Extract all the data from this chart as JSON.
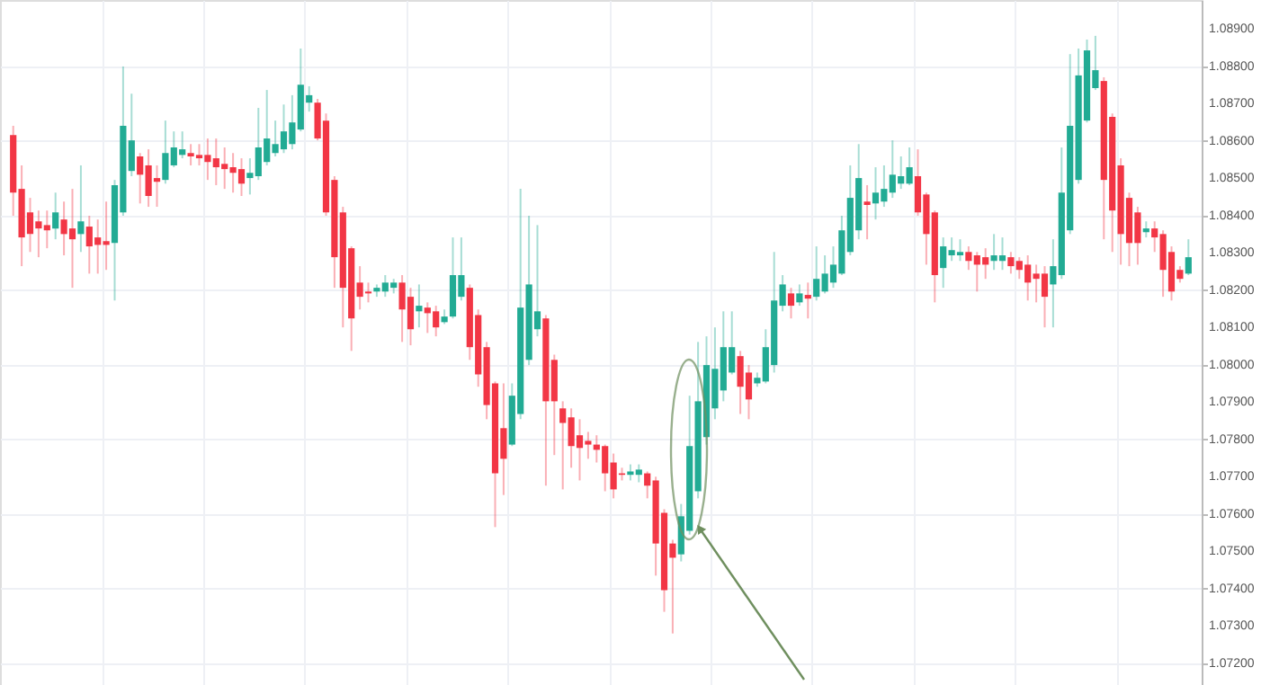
{
  "chart_data": {
    "type": "candlestick",
    "categories": [
      null,
      null,
      null,
      null,
      null,
      null,
      null,
      null,
      null,
      null,
      null,
      null,
      null,
      null,
      null,
      null,
      null,
      null,
      null,
      null,
      null,
      null,
      null,
      null,
      null,
      null,
      null,
      null,
      null,
      null,
      null,
      null,
      null,
      null,
      null,
      null,
      null,
      null,
      null,
      null,
      null,
      null,
      null,
      null,
      null,
      null,
      null,
      null,
      null,
      null,
      null,
      null,
      null,
      null,
      null,
      null,
      null,
      null,
      null,
      null,
      null,
      null,
      null,
      null,
      null,
      null,
      null,
      null,
      null,
      null,
      null,
      null,
      null,
      null,
      null,
      null,
      null,
      null,
      null,
      null,
      null,
      null,
      null,
      null,
      null,
      null,
      null,
      null,
      null,
      null,
      null,
      null,
      null,
      null,
      null,
      null,
      null,
      null,
      null,
      null,
      null,
      null,
      null,
      null,
      null,
      null,
      null,
      null,
      null,
      null,
      null,
      null,
      null,
      null,
      null,
      null,
      null,
      null,
      null,
      null,
      null,
      null,
      null,
      null,
      null,
      null,
      null,
      null,
      null,
      null,
      null,
      null,
      null,
      null,
      null,
      null,
      null,
      null,
      null,
      null
    ],
    "ohlc": [
      [
        1.08615,
        1.0864,
        1.08399,
        1.08461
      ],
      [
        1.08471,
        1.08534,
        1.08264,
        1.08341
      ],
      [
        1.08408,
        1.08447,
        1.08302,
        1.0835
      ],
      [
        1.08384,
        1.08413,
        1.08288,
        1.08365
      ],
      [
        1.08374,
        1.08413,
        1.08312,
        1.0836
      ],
      [
        1.08365,
        1.08461,
        1.08336,
        1.08408
      ],
      [
        1.08389,
        1.08437,
        1.08293,
        1.0835
      ],
      [
        1.08365,
        1.08471,
        1.08206,
        1.08336
      ],
      [
        1.0835,
        1.08534,
        1.08302,
        1.08384
      ],
      [
        1.0837,
        1.08399,
        1.08244,
        1.08317
      ],
      [
        1.08341,
        1.08389,
        1.08244,
        1.08321
      ],
      [
        1.08331,
        1.08437,
        1.08254,
        1.08321
      ],
      [
        1.08326,
        1.08495,
        1.08172,
        1.08481
      ],
      [
        1.08408,
        1.08799,
        1.08399,
        1.0864
      ],
      [
        1.08519,
        1.08726,
        1.08505,
        1.08601
      ],
      [
        1.08558,
        1.08567,
        1.08432,
        1.08509
      ],
      [
        1.08534,
        1.08577,
        1.08423,
        1.08452
      ],
      [
        1.085,
        1.08534,
        1.08423,
        1.0849
      ],
      [
        1.08495,
        1.08654,
        1.08485,
        1.08567
      ],
      [
        1.08534,
        1.08625,
        1.08529,
        1.08582
      ],
      [
        1.08562,
        1.08625,
        1.08553,
        1.08577
      ],
      [
        1.08567,
        1.08591,
        1.08534,
        1.08558
      ],
      [
        1.08562,
        1.08591,
        1.08534,
        1.08553
      ],
      [
        1.08562,
        1.08606,
        1.08495,
        1.08543
      ],
      [
        1.08553,
        1.08606,
        1.08481,
        1.08529
      ],
      [
        1.08538,
        1.08582,
        1.08471,
        1.08524
      ],
      [
        1.08529,
        1.08567,
        1.08461,
        1.08514
      ],
      [
        1.08524,
        1.08553,
        1.08452,
        1.08485
      ],
      [
        1.085,
        1.08553,
        1.08456,
        1.08514
      ],
      [
        1.08505,
        1.08688,
        1.08495,
        1.08582
      ],
      [
        1.08543,
        1.08736,
        1.08534,
        1.08606
      ],
      [
        1.08567,
        1.08654,
        1.08558,
        1.08591
      ],
      [
        1.08577,
        1.08697,
        1.08567,
        1.08625
      ],
      [
        1.08591,
        1.08722,
        1.08577,
        1.08649
      ],
      [
        1.0863,
        1.08847,
        1.08625,
        1.0875
      ],
      [
        1.08702,
        1.08746,
        1.08678,
        1.08722
      ],
      [
        1.08702,
        1.08712,
        1.08601,
        1.08606
      ],
      [
        1.08654,
        1.08673,
        1.08399,
        1.08408
      ],
      [
        1.08495,
        1.08505,
        1.08206,
        1.08288
      ],
      [
        1.08408,
        1.08423,
        1.081,
        1.08206
      ],
      [
        1.08312,
        1.08317,
        1.08037,
        1.08124
      ],
      [
        1.0822,
        1.08264,
        1.08148,
        1.08182
      ],
      [
        1.08196,
        1.0822,
        1.08167,
        1.08191
      ],
      [
        1.08196,
        1.08215,
        1.08182,
        1.08206
      ],
      [
        1.08196,
        1.0824,
        1.08182,
        1.0822
      ],
      [
        1.08206,
        1.0823,
        1.08191,
        1.0822
      ],
      [
        1.0822,
        1.0824,
        1.08061,
        1.08148
      ],
      [
        1.08182,
        1.08206,
        1.08052,
        1.08095
      ],
      [
        1.08143,
        1.08215,
        1.081,
        1.08158
      ],
      [
        1.08153,
        1.08167,
        1.08085,
        1.08138
      ],
      [
        1.08143,
        1.08158,
        1.08076,
        1.081
      ],
      [
        1.08114,
        1.08148,
        1.08109,
        1.08129
      ],
      [
        1.08129,
        1.08341,
        1.08124,
        1.0824
      ],
      [
        1.08182,
        1.08341,
        1.08172,
        1.0824
      ],
      [
        1.08206,
        1.08215,
        1.08013,
        1.08047
      ],
      [
        1.08133,
        1.08148,
        1.07941,
        1.07974
      ],
      [
        1.08047,
        1.08061,
        1.07854,
        1.07892
      ],
      [
        1.0795,
        1.07955,
        1.07565,
        1.07709
      ],
      [
        1.0783,
        1.0795,
        1.07651,
        1.07748
      ],
      [
        1.07786,
        1.0795,
        1.07782,
        1.07917
      ],
      [
        1.07868,
        1.08471,
        1.07854,
        1.08153
      ],
      [
        1.08013,
        1.08399,
        1.07999,
        1.08215
      ],
      [
        1.08095,
        1.08374,
        1.08076,
        1.08143
      ],
      [
        1.08124,
        1.08133,
        1.07676,
        1.07902
      ],
      [
        1.08013,
        1.08027,
        1.07758,
        1.07902
      ],
      [
        1.07883,
        1.07902,
        1.07666,
        1.07844
      ],
      [
        1.07859,
        1.07883,
        1.07724,
        1.07782
      ],
      [
        1.07811,
        1.07854,
        1.0769,
        1.07777
      ],
      [
        1.07796,
        1.0782,
        1.07748,
        1.07786
      ],
      [
        1.07786,
        1.07811,
        1.07738,
        1.07772
      ],
      [
        1.07782,
        1.07786,
        1.07661,
        1.07709
      ],
      [
        1.07738,
        1.07762,
        1.07642,
        1.07666
      ],
      [
        1.07709,
        1.07724,
        1.0769,
        1.07705
      ],
      [
        1.07705,
        1.07733,
        1.0769,
        1.07714
      ],
      [
        1.07705,
        1.07733,
        1.07685,
        1.07719
      ],
      [
        1.07709,
        1.07714,
        1.07642,
        1.07676
      ],
      [
        1.0769,
        1.077,
        1.07435,
        1.07521
      ],
      [
        1.07603,
        1.07613,
        1.07338,
        1.07396
      ],
      [
        1.07521,
        1.07531,
        1.0728,
        1.07483
      ],
      [
        1.07492,
        1.07627,
        1.07473,
        1.07594
      ],
      [
        1.07555,
        1.07917,
        1.07545,
        1.07782
      ],
      [
        1.07661,
        1.08061,
        1.07642,
        1.07902
      ],
      [
        1.07806,
        1.08076,
        1.07786,
        1.07999
      ],
      [
        1.07883,
        1.081,
        1.07854,
        1.07989
      ],
      [
        1.07931,
        1.08143,
        1.07902,
        1.08047
      ],
      [
        1.07979,
        1.08143,
        1.07974,
        1.08047
      ],
      [
        1.08023,
        1.08037,
        1.07868,
        1.07941
      ],
      [
        1.07979,
        1.07999,
        1.07854,
        1.07907
      ],
      [
        1.0795,
        1.07979,
        1.07941,
        1.07965
      ],
      [
        1.07955,
        1.08095,
        1.0795,
        1.08047
      ],
      [
        1.07999,
        1.08302,
        1.07979,
        1.08172
      ],
      [
        1.08158,
        1.0824,
        1.08143,
        1.08215
      ],
      [
        1.08191,
        1.08206,
        1.08124,
        1.08158
      ],
      [
        1.08167,
        1.08215,
        1.08158,
        1.08191
      ],
      [
        1.08187,
        1.0822,
        1.08124,
        1.08177
      ],
      [
        1.08182,
        1.08317,
        1.08172,
        1.0823
      ],
      [
        1.08196,
        1.08293,
        1.08191,
        1.08244
      ],
      [
        1.0822,
        1.08317,
        1.08206,
        1.08268
      ],
      [
        1.08244,
        1.08399,
        1.0824,
        1.0836
      ],
      [
        1.08302,
        1.08534,
        1.08293,
        1.08447
      ],
      [
        1.0836,
        1.08591,
        1.08336,
        1.085
      ],
      [
        1.08437,
        1.08481,
        1.08336,
        1.08428
      ],
      [
        1.08432,
        1.08529,
        1.08389,
        1.08461
      ],
      [
        1.08437,
        1.08534,
        1.08423,
        1.08471
      ],
      [
        1.08461,
        1.08601,
        1.08447,
        1.08509
      ],
      [
        1.08485,
        1.08558,
        1.08471,
        1.08505
      ],
      [
        1.08485,
        1.08582,
        1.08481,
        1.08529
      ],
      [
        1.08505,
        1.08577,
        1.08399,
        1.08408
      ],
      [
        1.08456,
        1.08461,
        1.08268,
        1.0835
      ],
      [
        1.08408,
        1.08413,
        1.08167,
        1.0824
      ],
      [
        1.08259,
        1.08341,
        1.08206,
        1.08317
      ],
      [
        1.08293,
        1.08341,
        1.08278,
        1.08307
      ],
      [
        1.08293,
        1.08336,
        1.08278,
        1.08302
      ],
      [
        1.08302,
        1.08317,
        1.08254,
        1.08278
      ],
      [
        1.08293,
        1.08302,
        1.08196,
        1.08268
      ],
      [
        1.08288,
        1.08312,
        1.0823,
        1.08268
      ],
      [
        1.08278,
        1.0835,
        1.08254,
        1.08293
      ],
      [
        1.08278,
        1.08341,
        1.08254,
        1.08293
      ],
      [
        1.08288,
        1.08302,
        1.08244,
        1.08264
      ],
      [
        1.08278,
        1.08288,
        1.0823,
        1.08254
      ],
      [
        1.08268,
        1.08293,
        1.08172,
        1.0822
      ],
      [
        1.08244,
        1.08268,
        1.08167,
        1.0823
      ],
      [
        1.08244,
        1.08264,
        1.081,
        1.08182
      ],
      [
        1.08215,
        1.08336,
        1.081,
        1.08264
      ],
      [
        1.0824,
        1.08582,
        1.0823,
        1.08461
      ],
      [
        1.0836,
        1.08832,
        1.0835,
        1.0864
      ],
      [
        1.08495,
        1.08847,
        1.08485,
        1.08775
      ],
      [
        1.08654,
        1.08871,
        1.08649,
        1.08842
      ],
      [
        1.08741,
        1.08881,
        1.08736,
        1.08789
      ],
      [
        1.0876,
        1.0877,
        1.08336,
        1.08495
      ],
      [
        1.08664,
        1.08673,
        1.08302,
        1.08413
      ],
      [
        1.08534,
        1.08553,
        1.08268,
        1.0835
      ],
      [
        1.08447,
        1.08461,
        1.08264,
        1.08326
      ],
      [
        1.08408,
        1.08423,
        1.08268,
        1.08326
      ],
      [
        1.08355,
        1.08384,
        1.08341,
        1.08365
      ],
      [
        1.08365,
        1.08384,
        1.08302,
        1.08341
      ],
      [
        1.0835,
        1.0836,
        1.08182,
        1.08254
      ],
      [
        1.08302,
        1.08317,
        1.08172,
        1.08196
      ],
      [
        1.08254,
        1.08264,
        1.0822,
        1.0823
      ],
      [
        1.08244,
        1.08336,
        1.0824,
        1.08288
      ]
    ],
    "colors": [
      "#f23645",
      "#f23645",
      "#f23645",
      "#f23645",
      "#f23645",
      "#22ab94",
      "#f23645",
      "#f23645",
      "#22ab94",
      "#f23645",
      "#f23645",
      "#f23645",
      "#22ab94",
      "#22ab94",
      "#22ab94",
      "#f23645",
      "#f23645",
      "#f23645",
      "#22ab94",
      "#22ab94",
      "#22ab94",
      "#f23645",
      "#f23645",
      "#f23645",
      "#f23645",
      "#f23645",
      "#f23645",
      "#f23645",
      "#22ab94",
      "#22ab94",
      "#22ab94",
      "#22ab94",
      "#22ab94",
      "#22ab94",
      "#22ab94",
      "#22ab94",
      "#f23645",
      "#f23645",
      "#f23645",
      "#f23645",
      "#f23645",
      "#f23645",
      "#f23645",
      "#22ab94",
      "#22ab94",
      "#22ab94",
      "#f23645",
      "#f23645",
      "#22ab94",
      "#f23645",
      "#f23645",
      "#22ab94",
      "#22ab94",
      "#22ab94",
      "#f23645",
      "#f23645",
      "#f23645",
      "#f23645",
      "#f23645",
      "#22ab94",
      "#22ab94",
      "#22ab94",
      "#22ab94",
      "#f23645",
      "#f23645",
      "#f23645",
      "#f23645",
      "#f23645",
      "#f23645",
      "#f23645",
      "#f23645",
      "#f23645",
      "#f23645",
      "#22ab94",
      "#22ab94",
      "#f23645",
      "#f23645",
      "#f23645",
      "#f23645",
      "#22ab94",
      "#22ab94",
      "#22ab94",
      "#22ab94",
      "#22ab94",
      "#22ab94",
      "#22ab94",
      "#f23645",
      "#f23645",
      "#22ab94",
      "#22ab94",
      "#22ab94",
      "#22ab94",
      "#f23645",
      "#22ab94",
      "#f23645",
      "#22ab94",
      "#22ab94",
      "#22ab94",
      "#22ab94",
      "#22ab94",
      "#22ab94",
      "#f23645",
      "#22ab94",
      "#22ab94",
      "#22ab94",
      "#22ab94",
      "#22ab94",
      "#f23645",
      "#f23645",
      "#f23645",
      "#22ab94",
      "#22ab94",
      "#22ab94",
      "#f23645",
      "#f23645",
      "#f23645",
      "#22ab94",
      "#22ab94",
      "#f23645",
      "#f23645",
      "#f23645",
      "#f23645",
      "#f23645",
      "#22ab94",
      "#22ab94",
      "#22ab94",
      "#22ab94",
      "#22ab94",
      "#22ab94",
      "#f23645",
      "#f23645",
      "#f23645",
      "#f23645",
      "#f23645",
      "#22ab94",
      "#f23645",
      "#f23645",
      "#f23645",
      "#f23645",
      "#22ab94"
    ],
    "ylim": [
      1.07142,
      1.08977
    ],
    "yticks": [
      {
        "value": 1.072,
        "label": "1.07200"
      },
      {
        "value": 1.073,
        "label": "1.07300"
      },
      {
        "value": 1.074,
        "label": "1.07400"
      },
      {
        "value": 1.075,
        "label": "1.07500"
      },
      {
        "value": 1.076,
        "label": "1.07600"
      },
      {
        "value": 1.077,
        "label": "1.07700"
      },
      {
        "value": 1.078,
        "label": "1.07800"
      },
      {
        "value": 1.079,
        "label": "1.07900"
      },
      {
        "value": 1.08,
        "label": "1.08000"
      },
      {
        "value": 1.081,
        "label": "1.08100"
      },
      {
        "value": 1.082,
        "label": "1.08200"
      },
      {
        "value": 1.083,
        "label": "1.08300"
      },
      {
        "value": 1.084,
        "label": "1.08400"
      },
      {
        "value": 1.085,
        "label": "1.08500"
      },
      {
        "value": 1.086,
        "label": "1.08600"
      },
      {
        "value": 1.087,
        "label": "1.08700"
      },
      {
        "value": 1.088,
        "label": "1.08800"
      },
      {
        "value": 1.089,
        "label": "1.08900"
      }
    ],
    "grid": true,
    "tick_labels": "y"
  }
}
